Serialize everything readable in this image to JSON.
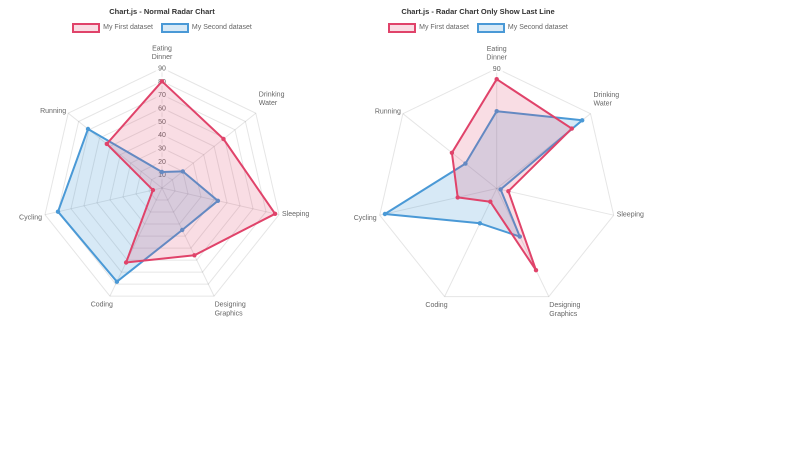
{
  "page": {
    "background": "#FFFFFF"
  },
  "palette": {
    "grid_line": "rgba(0,0,0,0.1)",
    "tick_backdrop": "rgba(255,255,255,0.75)",
    "title_color": "#333333",
    "text_color": "#666666"
  },
  "chart_data": [
    {
      "type": "radar",
      "title": "Chart.js - Normal Radar Chart",
      "legend_position": "top",
      "categories": [
        "Eating Dinner",
        "Drinking Water",
        "Sleeping",
        "Designing Graphics",
        "Coding",
        "Cycling",
        "Running"
      ],
      "series": [
        {
          "name": "My First dataset",
          "values": [
            80,
            59,
            87,
            56,
            62,
            7,
            53
          ],
          "border_color": "#E0436A",
          "fill_color": "rgba(224,67,106,0.18)"
        },
        {
          "name": "My Second dataset",
          "values": [
            12,
            20,
            43,
            35,
            78,
            80,
            71
          ],
          "border_color": "#4A99D6",
          "fill_color": "rgba(74,153,214,0.22)"
        }
      ],
      "scale": {
        "min": 0,
        "max": 90,
        "step": 10,
        "tick_labels": [
          10,
          20,
          30,
          40,
          50,
          60,
          70,
          80,
          90
        ],
        "grid_rings": [
          10,
          20,
          30,
          40,
          50,
          60,
          70,
          80,
          90
        ]
      }
    },
    {
      "type": "radar",
      "title": "Chart.js - Radar Chart Only Show Last Line",
      "legend_position": "top",
      "categories": [
        "Eating Dinner",
        "Drinking Water",
        "Sleeping",
        "Designing Graphics",
        "Coding",
        "Cycling",
        "Running"
      ],
      "series": [
        {
          "name": "My First dataset",
          "values": [
            82,
            72,
            9,
            68,
            11,
            30,
            43
          ],
          "border_color": "#E0436A",
          "fill_color": "rgba(224,67,106,0.18)"
        },
        {
          "name": "My Second dataset",
          "values": [
            58,
            82,
            3,
            40,
            29,
            86,
            30
          ],
          "border_color": "#4A99D6",
          "fill_color": "rgba(74,153,214,0.22)"
        }
      ],
      "scale": {
        "min": 0,
        "max": 90,
        "step": 10,
        "tick_labels": [
          90
        ],
        "grid_rings": [
          90
        ]
      }
    }
  ]
}
